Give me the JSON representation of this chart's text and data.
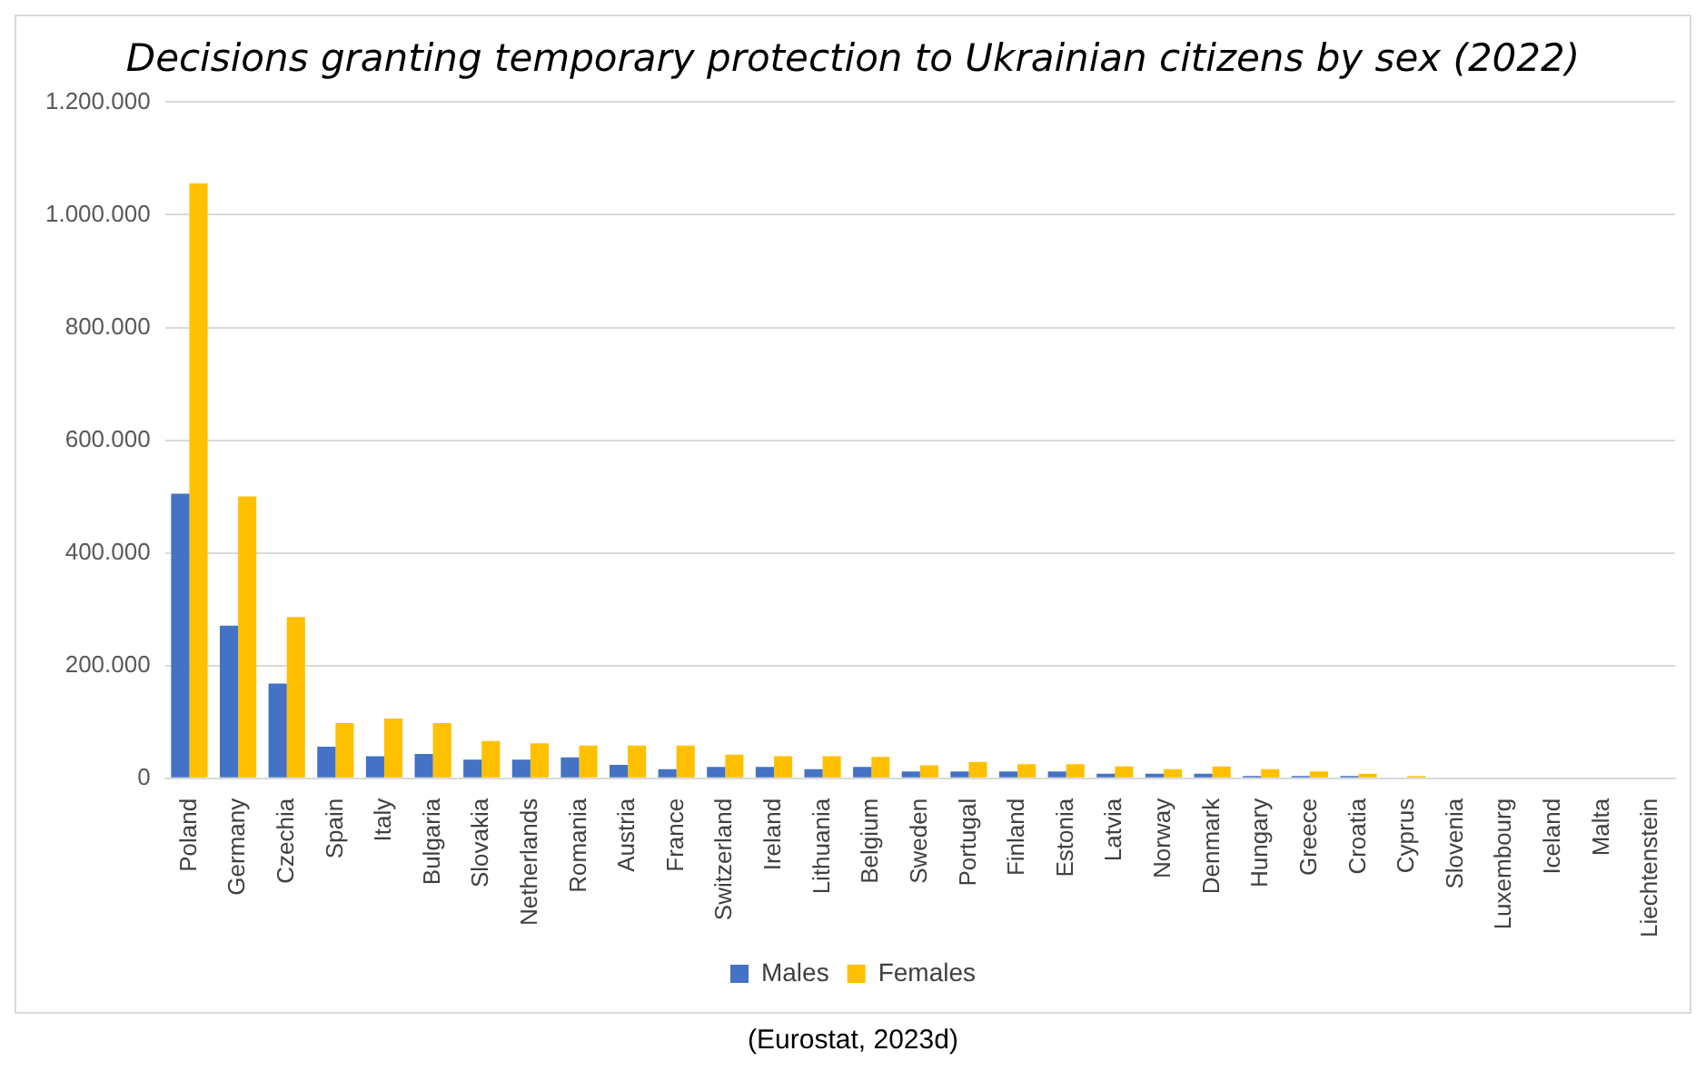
{
  "chart_data": {
    "type": "bar",
    "title": "Decisions granting temporary protection to Ukrainian citizens by sex (2022)",
    "categories": [
      "Poland",
      "Germany",
      "Czechia",
      "Spain",
      "Italy",
      "Bulgaria",
      "Slovakia",
      "Netherlands",
      "Romania",
      "Austria",
      "France",
      "Switzerland",
      "Ireland",
      "Lithuania",
      "Belgium",
      "Sweden",
      "Portugal",
      "Finland",
      "Estonia",
      "Latvia",
      "Norway",
      "Denmark",
      "Hungary",
      "Greece",
      "Croatia",
      "Cyprus",
      "Slovenia",
      "Luxembourg",
      "Iceland",
      "Malta",
      "Liechtenstein"
    ],
    "series": [
      {
        "name": "Males",
        "color": "#4472c4",
        "values": [
          505000,
          271000,
          168000,
          56000,
          39000,
          43000,
          33000,
          33000,
          37000,
          24000,
          16000,
          20000,
          20000,
          16000,
          20000,
          12000,
          12000,
          12000,
          12000,
          8000,
          8000,
          8000,
          4000,
          4000,
          4000,
          null,
          null,
          null,
          null,
          null,
          null
        ]
      },
      {
        "name": "Females",
        "color": "#ffc000",
        "values": [
          1056000,
          500000,
          286000,
          98000,
          106000,
          98000,
          66000,
          62000,
          58000,
          58000,
          58000,
          42000,
          39000,
          39000,
          38000,
          23000,
          29000,
          25000,
          25000,
          21000,
          16000,
          21000,
          16000,
          12000,
          8000,
          4000,
          null,
          null,
          null,
          null,
          null
        ]
      }
    ],
    "ylim": [
      0,
      1200000
    ],
    "yticks": [
      {
        "value": 0,
        "label": "0"
      },
      {
        "value": 200000,
        "label": "200.000"
      },
      {
        "value": 400000,
        "label": "400.000"
      },
      {
        "value": 600000,
        "label": "600.000"
      },
      {
        "value": 800000,
        "label": "800.000"
      },
      {
        "value": 1000000,
        "label": "1.000.000"
      },
      {
        "value": 1200000,
        "label": "1.200.000"
      }
    ],
    "grid": "y",
    "legend": "bottom",
    "annotations": [
      "(Eurostat, 2023d)"
    ]
  }
}
